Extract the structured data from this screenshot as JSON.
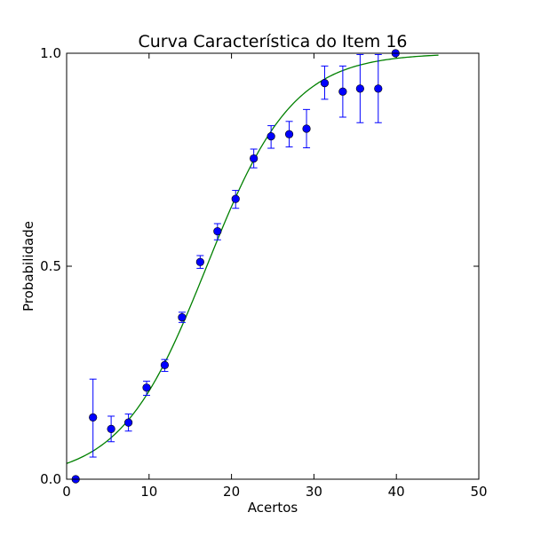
{
  "chart_data": {
    "type": "scatter",
    "title": "Curva Característica do Item 16",
    "xlabel": "Acertos",
    "ylabel": "Probabilidade",
    "xlim": [
      0,
      50
    ],
    "ylim": [
      0,
      1
    ],
    "xticks": [
      0,
      10,
      20,
      30,
      40,
      50
    ],
    "xtick_labels": [
      "0",
      "10",
      "20",
      "30",
      "40",
      "50"
    ],
    "yticks": [
      0,
      0.5,
      1
    ],
    "ytick_labels": [
      "0.0",
      "0.5",
      "1.0"
    ],
    "grid": false,
    "legend": "none",
    "points": {
      "color": "#0000ff",
      "marker": "circle",
      "x": [
        1.1,
        3.2,
        5.4,
        7.5,
        9.7,
        11.9,
        14.0,
        16.2,
        18.3,
        20.5,
        22.7,
        24.8,
        27.0,
        29.1,
        31.3,
        33.5,
        35.6,
        37.8,
        39.9
      ],
      "y": [
        0.0,
        0.145,
        0.118,
        0.133,
        0.215,
        0.268,
        0.38,
        0.51,
        0.582,
        0.658,
        0.753,
        0.805,
        0.81,
        0.823,
        0.93,
        0.91,
        0.917,
        0.917,
        1.0
      ],
      "yerr_low": [
        0.0,
        0.093,
        0.03,
        0.02,
        0.018,
        0.015,
        0.012,
        0.015,
        0.02,
        0.022,
        0.022,
        0.028,
        0.03,
        0.045,
        0.038,
        0.06,
        0.08,
        0.08,
        0.0
      ],
      "yerr_high": [
        0.0,
        0.09,
        0.03,
        0.02,
        0.015,
        0.013,
        0.012,
        0.015,
        0.018,
        0.02,
        0.022,
        0.025,
        0.03,
        0.045,
        0.04,
        0.06,
        0.08,
        0.08,
        0.0
      ]
    },
    "curve": {
      "color": "#008000",
      "type": "logistic",
      "x_range": [
        0,
        45.1
      ],
      "lower_asymptote": 0.0,
      "upper_asymptote": 1.0,
      "midpoint": 17.0,
      "slope": 0.1917
    }
  }
}
